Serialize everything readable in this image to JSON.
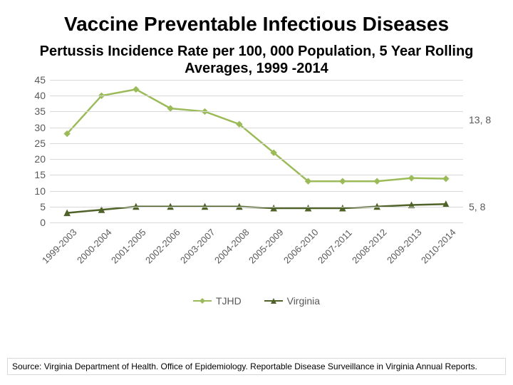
{
  "title": "Vaccine Preventable Infectious Diseases",
  "subtitle": "Pertussis Incidence Rate per 100, 000 Population,  5 Year Rolling Averages, 1999 -2014",
  "source": "Source: Virginia Department of Health. Office of Epidemiology. Reportable Disease Surveillance in Virginia Annual Reports.",
  "chart": {
    "type": "line",
    "background_color": "#ffffff",
    "grid_color": "#d9d9d9",
    "axis_label_color": "#595959",
    "axis_fontsize": 14,
    "x_labels": [
      "1999-2003",
      "2000-2004",
      "2001-2005",
      "2002-2006",
      "2003-2007",
      "2004-2008",
      "2005-2009",
      "2006-2010",
      "2007-2011",
      "2008-2012",
      "2009-2013",
      "2010-2014"
    ],
    "y_ticks": [
      0,
      5,
      10,
      15,
      20,
      25,
      30,
      35,
      40,
      45
    ],
    "ylim": [
      0,
      45
    ],
    "x_rotation_deg": -45,
    "line_width": 2.5,
    "marker_size": 4,
    "series": [
      {
        "name": "TJHD",
        "color": "#9bbb59",
        "marker": "diamond",
        "values": [
          28,
          40,
          42,
          36,
          35,
          31,
          22,
          13,
          13,
          13,
          14,
          13.8
        ],
        "end_label": "13, 8"
      },
      {
        "name": "Virginia",
        "color": "#4f6228",
        "marker": "triangle",
        "values": [
          3,
          4,
          5,
          5,
          5,
          5,
          4.5,
          4.5,
          4.5,
          5,
          5.5,
          5.8
        ],
        "end_label": "5, 8"
      }
    ],
    "legend_position": "bottom"
  }
}
